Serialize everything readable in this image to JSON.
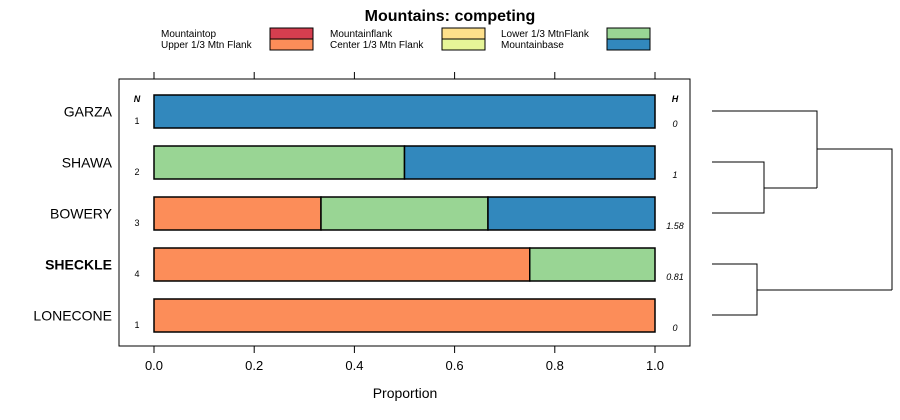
{
  "chart_data": {
    "type": "bar",
    "orientation": "horizontal-stacked",
    "title": "Mountains: competing",
    "xlabel": "Proportion",
    "xlim": [
      0,
      1
    ],
    "xticks": [
      "0.0",
      "0.2",
      "0.4",
      "0.6",
      "0.8",
      "1.0"
    ],
    "legend": [
      {
        "name": "Mountaintop",
        "color": "#D53E4F"
      },
      {
        "name": "Upper 1/3 Mtn Flank",
        "color": "#FC8D59"
      },
      {
        "name": "Mountainflank",
        "color": "#FEE08B"
      },
      {
        "name": "Center 1/3 Mtn Flank",
        "color": "#E6F598"
      },
      {
        "name": "Lower 1/3 MtnFlank",
        "color": "#99D594"
      },
      {
        "name": "Mountainbase",
        "color": "#3288BD"
      }
    ],
    "n_header": "N",
    "h_header": "H",
    "rows": [
      {
        "label": "GARZA",
        "bold": false,
        "n": "1",
        "h": "0",
        "values": [
          0,
          0,
          0,
          0,
          0,
          1
        ]
      },
      {
        "label": "SHAWA",
        "bold": false,
        "n": "2",
        "h": "1",
        "values": [
          0,
          0,
          0,
          0,
          0.5,
          0.5
        ]
      },
      {
        "label": "BOWERY",
        "bold": false,
        "n": "3",
        "h": "1.58",
        "values": [
          0,
          0.3333,
          0,
          0,
          0.3333,
          0.3334
        ]
      },
      {
        "label": "SHECKLE",
        "bold": true,
        "n": "4",
        "h": "0.81",
        "values": [
          0,
          0.75,
          0,
          0,
          0.25,
          0
        ]
      },
      {
        "label": "LONECONE",
        "bold": false,
        "n": "1",
        "h": "0",
        "values": [
          0,
          1,
          0,
          0,
          0,
          0
        ]
      }
    ],
    "dendrogram": "((GARZA,(SHAWA,BOWERY)),(SHECKLE,LONECONE))"
  }
}
